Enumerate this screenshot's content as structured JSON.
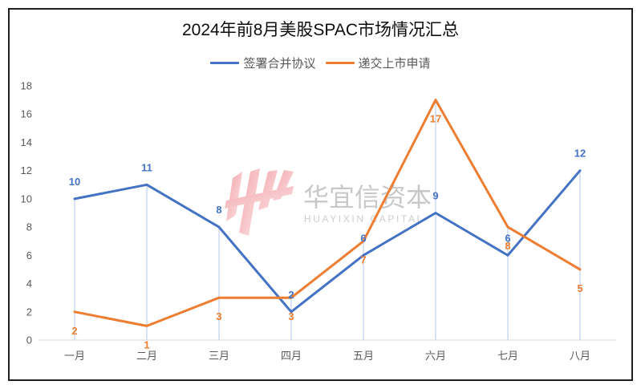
{
  "chart_data": {
    "type": "line",
    "title": "2024年前8月美股SPAC市场情况汇总",
    "xlabel": "",
    "ylabel": "",
    "categories": [
      "一月",
      "二月",
      "三月",
      "四月",
      "五月",
      "六月",
      "七月",
      "八月"
    ],
    "series": [
      {
        "name": "签署合并协议",
        "color": "#4472C4",
        "values": [
          10,
          11,
          8,
          2,
          6,
          9,
          6,
          12
        ]
      },
      {
        "name": "递交上市申请",
        "color": "#ED7D31",
        "values": [
          2,
          1,
          3,
          3,
          7,
          17,
          8,
          5
        ]
      }
    ],
    "ylim": [
      0,
      18
    ],
    "yticks": [
      0,
      2,
      4,
      6,
      8,
      10,
      12,
      14,
      16,
      18
    ],
    "grid": false,
    "legend": "top",
    "data_labels": true,
    "drop_lines": true
  },
  "watermark": {
    "text_cn": "华宜信资本",
    "text_en": "HUAYIXIN CAPITAL",
    "logo_color": "#E8505B"
  }
}
